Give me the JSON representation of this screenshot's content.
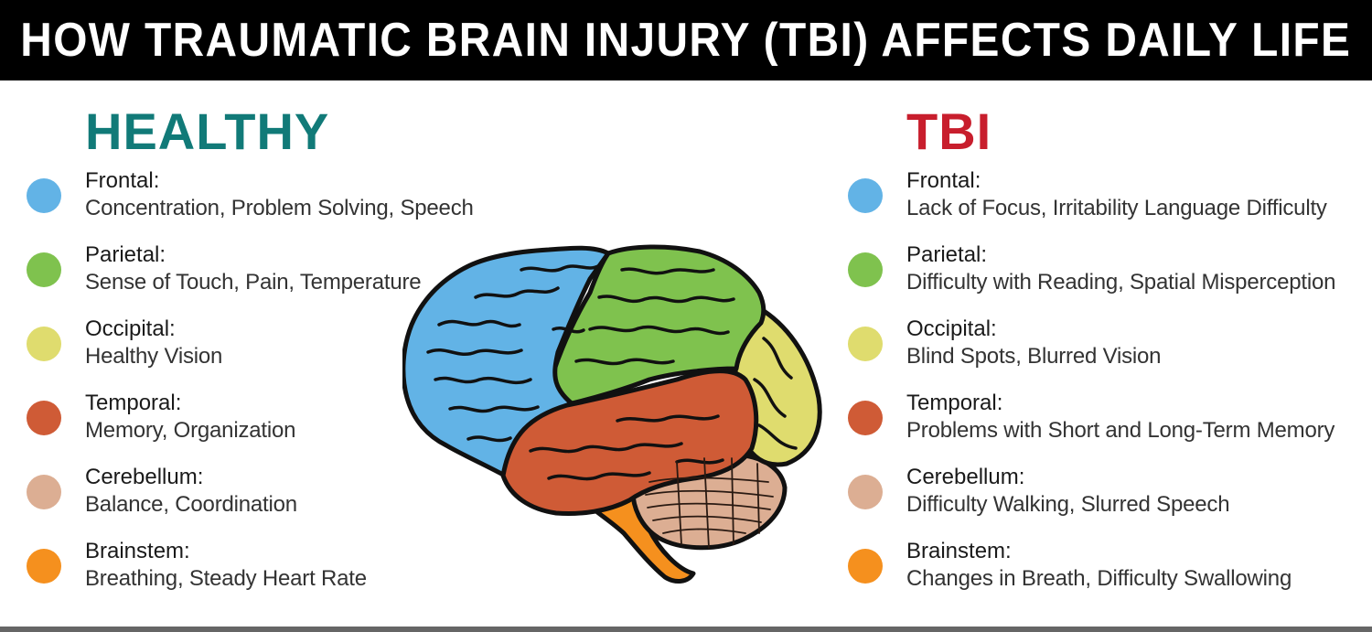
{
  "title": "HOW TRAUMATIC BRAIN INJURY (TBI) AFFECTS DAILY LIFE",
  "colors": {
    "healthy_heading": "#117a78",
    "tbi_heading": "#c81e2d",
    "frontal": "#62b3e6",
    "parietal": "#7fc24e",
    "occipital": "#dfdc6e",
    "temporal": "#cf5b36",
    "cerebellum": "#dcae93",
    "brainstem": "#f5901e"
  },
  "healthy": {
    "heading": "HEALTHY",
    "items": [
      {
        "name": "Frontal:",
        "desc": "Concentration, Problem Solving, Speech",
        "color": "#62b3e6"
      },
      {
        "name": "Parietal:",
        "desc": "Sense of Touch, Pain, Temperature",
        "color": "#7fc24e"
      },
      {
        "name": "Occipital:",
        "desc": "Healthy Vision",
        "color": "#dfdc6e"
      },
      {
        "name": "Temporal:",
        "desc": "Memory, Organization",
        "color": "#cf5b36"
      },
      {
        "name": "Cerebellum:",
        "desc": "Balance, Coordination",
        "color": "#dcae93"
      },
      {
        "name": "Brainstem:",
        "desc": "Breathing, Steady Heart Rate",
        "color": "#f5901e"
      }
    ]
  },
  "tbi": {
    "heading": "TBI",
    "items": [
      {
        "name": "Frontal:",
        "desc": "Lack of Focus, Irritability Language Difficulty",
        "color": "#62b3e6"
      },
      {
        "name": "Parietal:",
        "desc": "Difficulty with Reading, Spatial Misperception",
        "color": "#7fc24e"
      },
      {
        "name": "Occipital:",
        "desc": "Blind Spots, Blurred Vision",
        "color": "#dfdc6e"
      },
      {
        "name": "Temporal:",
        "desc": "Problems with Short and Long-Term Memory",
        "color": "#cf5b36"
      },
      {
        "name": "Cerebellum:",
        "desc": "Difficulty Walking, Slurred Speech",
        "color": "#dcae93"
      },
      {
        "name": "Brainstem:",
        "desc": "Changes in Breath, Difficulty Swallowing",
        "color": "#f5901e"
      }
    ]
  }
}
